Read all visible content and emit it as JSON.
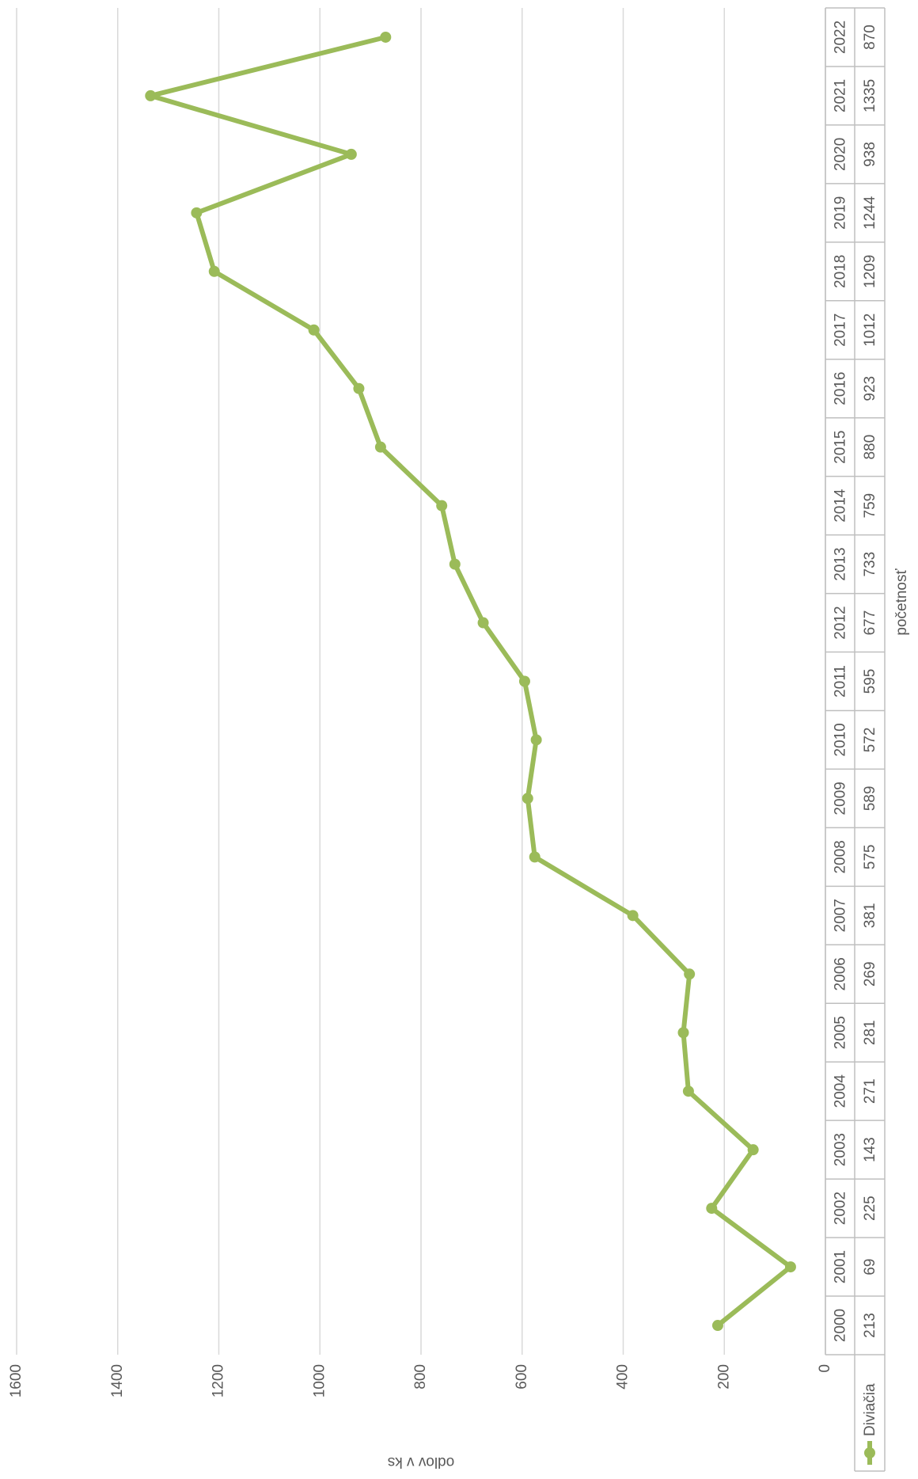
{
  "chart_data": {
    "type": "line",
    "x_label": "početnosť",
    "y_label": "odlov v ks",
    "categories": [
      "2000",
      "2001",
      "2002",
      "2003",
      "2004",
      "2005",
      "2006",
      "2007",
      "2008",
      "2009",
      "2010",
      "2011",
      "2012",
      "2013",
      "2014",
      "2015",
      "2016",
      "2017",
      "2018",
      "2019",
      "2020",
      "2021",
      "2022"
    ],
    "series": [
      {
        "name": "Diviačia",
        "color": "#9bbb59",
        "values": [
          213,
          69,
          225,
          143,
          271,
          281,
          269,
          381,
          575,
          589,
          572,
          595,
          677,
          733,
          759,
          880,
          923,
          1012,
          1209,
          1244,
          938,
          1335,
          870
        ]
      }
    ],
    "ylim": [
      0,
      1600
    ],
    "yticks": [
      0,
      200,
      400,
      600,
      800,
      1000,
      1200,
      1400,
      1600
    ],
    "grid": true,
    "data_table": true
  }
}
